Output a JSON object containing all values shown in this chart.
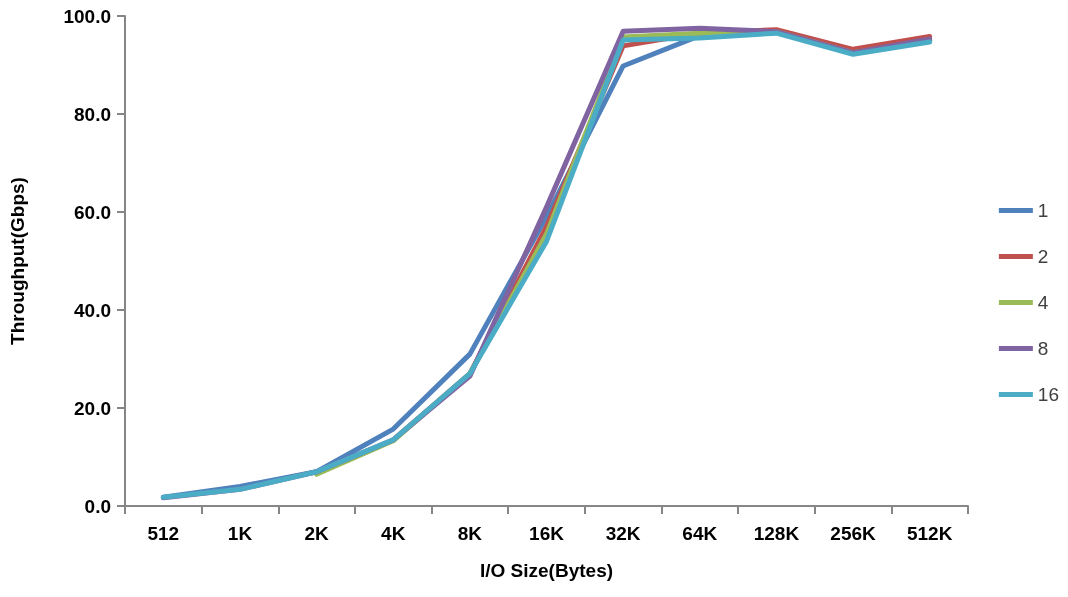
{
  "chart_data": {
    "type": "line",
    "xlabel": "I/O Size(Bytes)",
    "ylabel": "Throughput(Gbps)",
    "categories": [
      "512",
      "1K",
      "2K",
      "4K",
      "8K",
      "16K",
      "32K",
      "64K",
      "128K",
      "256K",
      "512K"
    ],
    "ylim": [
      0,
      100
    ],
    "yticks": [
      {
        "value": 0,
        "label": "0.0"
      },
      {
        "value": 20,
        "label": "20.0"
      },
      {
        "value": 40,
        "label": "40.0"
      },
      {
        "value": 60,
        "label": "60.0"
      },
      {
        "value": 80,
        "label": "80.0"
      },
      {
        "value": 100,
        "label": "100.0"
      }
    ],
    "grid": false,
    "legend": "right",
    "marker": "none",
    "line_style": "solid",
    "series": [
      {
        "name": "1",
        "color": "#4f81bd",
        "values": [
          1.8,
          4.0,
          7.0,
          15.7,
          31.0,
          59.0,
          89.8,
          96.0,
          96.8,
          92.5,
          95.0
        ]
      },
      {
        "name": "2",
        "color": "#c0504d",
        "values": [
          null,
          null,
          null,
          13.5,
          27.0,
          57.0,
          93.9,
          96.5,
          97.2,
          93.2,
          95.8
        ]
      },
      {
        "name": "4",
        "color": "#9bbb59",
        "values": [
          null,
          null,
          6.5,
          13.3,
          27.0,
          55.5,
          95.7,
          96.5,
          96.8,
          92.5,
          95.0
        ]
      },
      {
        "name": "8",
        "color": "#8064a2",
        "values": [
          1.7,
          3.4,
          7.0,
          13.5,
          26.5,
          61.0,
          96.9,
          97.5,
          96.8,
          92.5,
          95.3
        ]
      },
      {
        "name": "16",
        "color": "#4bacc6",
        "values": [
          1.8,
          3.4,
          7.0,
          13.5,
          27.0,
          54.0,
          95.1,
          95.5,
          96.5,
          92.2,
          94.7
        ]
      }
    ]
  }
}
